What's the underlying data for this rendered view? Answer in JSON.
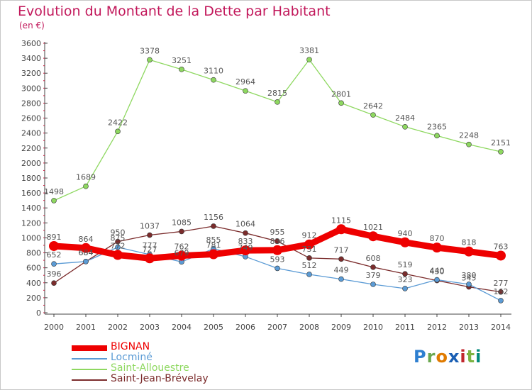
{
  "title": "Evolution du Montant de la Dette par Habitant",
  "subtitle": "(en €)",
  "brand": {
    "letters": [
      "P",
      "r",
      "o",
      "x",
      "i",
      "t",
      "i"
    ],
    "colors": [
      "#2e7fd0",
      "#6aa84f",
      "#e07b00",
      "#1a5fb4",
      "#c1272d",
      "#7cb342",
      "#00897b"
    ]
  },
  "colors": {
    "title": "#c2185b",
    "axis": "#555555",
    "label": "#666666"
  },
  "chart_data": {
    "type": "line",
    "title": "Evolution du Montant de la Dette par Habitant",
    "ylabel": "(en €)",
    "xlabel": "",
    "categories": [
      "2000",
      "2001",
      "2002",
      "2003",
      "2004",
      "2005",
      "2006",
      "2007",
      "2008",
      "2009",
      "2010",
      "2011",
      "2012",
      "2013",
      "2014"
    ],
    "ylim": [
      0,
      3600
    ],
    "yticks": [
      0,
      200,
      400,
      600,
      800,
      1000,
      1200,
      1400,
      1600,
      1800,
      2000,
      2200,
      2400,
      2600,
      2800,
      3000,
      3200,
      3400,
      3600
    ],
    "grid": false,
    "legend_position": "bottom-left",
    "series": [
      {
        "name": "BIGNAN",
        "color": "#ee0000",
        "width": 9,
        "marker": 7,
        "values": [
          891,
          864,
          772,
          727,
          762,
          781,
          833,
          836,
          912,
          1115,
          1021,
          940,
          870,
          818,
          763
        ]
      },
      {
        "name": "Locminé",
        "color": "#5b9bd5",
        "width": 1.3,
        "marker": 3.5,
        "values": [
          652,
          684,
          875,
          777,
          679,
          855,
          749,
          593,
          512,
          449,
          379,
          323,
          440,
          380,
          162
        ]
      },
      {
        "name": "Saint-Allouestre",
        "color": "#8ed860",
        "width": 1.3,
        "marker": 3.5,
        "values": [
          1498,
          1689,
          2422,
          3378,
          3251,
          3110,
          2964,
          2815,
          3381,
          2801,
          2642,
          2484,
          2365,
          2248,
          2151
        ]
      },
      {
        "name": "Saint-Jean-Brévelay",
        "color": "#7b2c2c",
        "width": 1.3,
        "marker": 3.5,
        "values": [
          396,
          684,
          950,
          1037,
          1085,
          1156,
          1064,
          955,
          731,
          717,
          608,
          519,
          430,
          345,
          277
        ]
      }
    ]
  }
}
